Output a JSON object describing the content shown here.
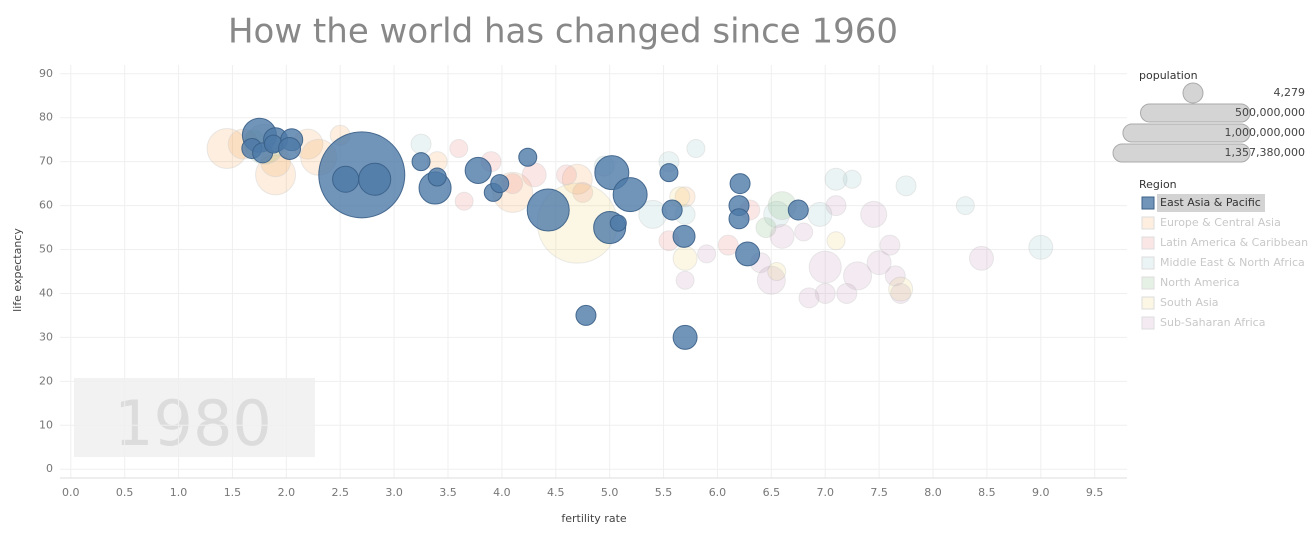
{
  "chart_data": {
    "type": "bubble",
    "title": "How the world has changed since 1960",
    "x_label": "fertility rate",
    "y_label": "life expectancy",
    "year": "1980",
    "xlim": [
      -0.1,
      9.8
    ],
    "ylim": [
      -2,
      92
    ],
    "xticks": [
      {
        "value": 0,
        "label": "0.0"
      },
      0.5,
      {
        "value": 1,
        "label": "1.0"
      },
      1.5,
      {
        "value": 2,
        "label": "2.0"
      },
      2.5,
      {
        "value": 3,
        "label": "3.0"
      },
      3.5,
      {
        "value": 4,
        "label": "4.0"
      },
      4.5,
      {
        "value": 5,
        "label": "5.0"
      },
      5.5,
      {
        "value": 6,
        "label": "6.0"
      },
      6.5,
      {
        "value": 7,
        "label": "7.0"
      },
      7.5,
      {
        "value": 8,
        "label": "8.0"
      },
      8.5,
      {
        "value": 9,
        "label": "9.0"
      },
      9.5
    ],
    "yticks": [
      0,
      10,
      20,
      30,
      40,
      50,
      60,
      70,
      80,
      90
    ],
    "grid": true,
    "size_legend_title": "population",
    "size_legend": [
      {
        "value": 4279,
        "label": "4,279"
      },
      {
        "value": 500000000,
        "label": "500,000,000"
      },
      {
        "value": 1000000000,
        "label": "1,000,000,000"
      },
      {
        "value": 1357380000,
        "label": "1,357,380,000"
      }
    ],
    "color_legend_title": "Region",
    "series": [
      {
        "name": "East Asia & Pacific",
        "color": "#4e79a7",
        "faded": false,
        "x": [
          1.75,
          1.68,
          1.78,
          1.9,
          1.88,
          2.05,
          2.03,
          2.7,
          2.55,
          2.82,
          3.25,
          3.38,
          3.4,
          3.78,
          3.92,
          3.98,
          4.24,
          4.43,
          4.78,
          5.02,
          5.0,
          5.08,
          5.19,
          5.55,
          5.58,
          5.69,
          5.7,
          6.21,
          6.2,
          6.2,
          6.28,
          6.75
        ],
        "values": [
          76,
          73,
          72,
          75,
          74,
          75,
          73,
          67,
          66,
          66,
          70,
          64,
          66.5,
          68,
          63,
          65,
          71,
          59,
          35,
          67.5,
          55,
          56,
          62.5,
          67.5,
          59,
          53,
          30,
          65,
          60,
          57,
          49,
          59
        ],
        "sizes": [
          153000000,
          53000000,
          53000000,
          76000000,
          43000000,
          64000000,
          64000000,
          980000000,
          90000000,
          136000000,
          43000000,
          136000000,
          43000000,
          90000000,
          43000000,
          43000000,
          43000000,
          234000000,
          53000000,
          153000000,
          136000000,
          34000000,
          153000000,
          43000000,
          53000000,
          64000000,
          76000000,
          53000000,
          53000000,
          53000000,
          76000000,
          53000000
        ]
      },
      {
        "name": "Europe & Central Asia",
        "color": "#f28e2b",
        "faded": true,
        "x": [
          1.45,
          1.6,
          1.9,
          2.2,
          2.3,
          2.5,
          1.9,
          3.4,
          4.1,
          4.7,
          5.7
        ],
        "values": [
          73,
          74,
          67,
          74,
          71,
          76,
          70,
          70,
          63,
          66,
          62
        ],
        "sizes": [
          212000000,
          119000000,
          212000000,
          119000000,
          172000000,
          53000000,
          119000000,
          53000000,
          212000000,
          119000000,
          53000000
        ]
      },
      {
        "name": "Latin America & Caribbean",
        "color": "#e15759",
        "faded": true,
        "x": [
          3.6,
          3.65,
          3.9,
          4.3,
          4.1,
          4.6,
          5.55,
          6.1,
          6.3,
          4.75
        ],
        "values": [
          73,
          61,
          70,
          67,
          65,
          67,
          52,
          51,
          59,
          63
        ],
        "sizes": [
          43000000,
          43000000,
          53000000,
          76000000,
          53000000,
          53000000,
          53000000,
          53000000,
          53000000,
          53000000
        ]
      },
      {
        "name": "Middle East & North Africa",
        "color": "#76b7b2",
        "faded": true,
        "x": [
          3.25,
          4.95,
          5.4,
          5.55,
          5.8,
          5.7,
          6.55,
          7.1,
          7.25,
          7.75,
          8.3,
          9.0,
          6.95
        ],
        "values": [
          74,
          69,
          58,
          70,
          73,
          58,
          58,
          66,
          66,
          64.5,
          60,
          50.5,
          58
        ],
        "sizes": [
          53000000,
          53000000,
          104000000,
          53000000,
          43000000,
          53000000,
          90000000,
          64000000,
          43000000,
          53000000,
          43000000,
          76000000,
          76000000
        ]
      },
      {
        "name": "North America",
        "color": "#59a14f",
        "faded": true,
        "x": [
          1.8,
          1.7,
          6.6,
          6.45
        ],
        "values": [
          74,
          75,
          60,
          55
        ],
        "sizes": [
          212000000,
          53000000,
          104000000,
          53000000
        ]
      },
      {
        "name": "South Asia",
        "color": "#edc948",
        "faded": true,
        "x": [
          4.7,
          5.7,
          7.1,
          6.55,
          7.7,
          5.65
        ],
        "values": [
          56,
          48,
          52,
          45,
          41,
          62
        ],
        "sizes": [
          848000000,
          76000000,
          43000000,
          43000000,
          76000000,
          53000000
        ]
      },
      {
        "name": "Sub-Saharan Africa",
        "color": "#b07aa1",
        "faded": true,
        "x": [
          6.5,
          6.85,
          7.0,
          7.2,
          7.45,
          7.6,
          7.5,
          7.7,
          8.45,
          7.0,
          7.3,
          6.6,
          6.8,
          7.1,
          5.9,
          5.7,
          7.65,
          6.4
        ],
        "values": [
          43,
          39,
          40,
          40,
          58,
          51,
          47,
          40,
          48,
          46,
          44,
          53,
          54,
          60,
          49,
          43,
          44,
          47
        ],
        "sizes": [
          104000000,
          53000000,
          53000000,
          53000000,
          90000000,
          53000000,
          76000000,
          53000000,
          76000000,
          136000000,
          104000000,
          76000000,
          43000000,
          53000000,
          43000000,
          43000000,
          53000000,
          53000000
        ]
      }
    ]
  }
}
